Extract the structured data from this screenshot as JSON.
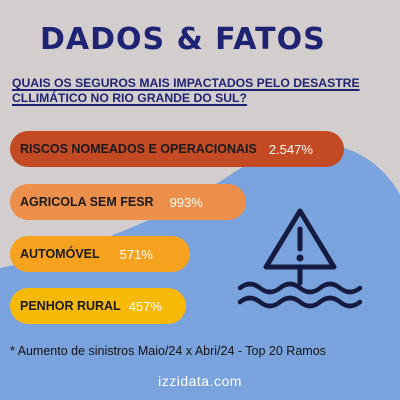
{
  "colors": {
    "background": "#d3cdcd",
    "blue_shape": "#7aa2dc",
    "title": "#1e2473",
    "bar1": "#c44a24",
    "bar2": "#ec8f4a",
    "bar3": "#f6a21e",
    "bar4": "#f7b907",
    "icon": "#141a40"
  },
  "header": {
    "title": "DADOS & FATOS",
    "question": "QUAIS OS SEGUROS MAIS IMPACTADOS PELO DESASTRE CLLIMÁTICO NO RIO GRANDE DO SUL?"
  },
  "items": [
    {
      "label": "RISCOS NOMEADOS E OPERACIONAIS",
      "value": "2.547%"
    },
    {
      "label": "AGRICOLA SEM FESR",
      "value": "993%"
    },
    {
      "label": "AUTOMÓVEL",
      "value": "571%"
    },
    {
      "label": "PENHOR RURAL",
      "value": "457%"
    }
  ],
  "icon": "flood-warning-icon",
  "footnote": "* Aumento de sinistros Maio/24 x Abri/24 - Top 20 Ramos",
  "website": "izzidata.com"
}
